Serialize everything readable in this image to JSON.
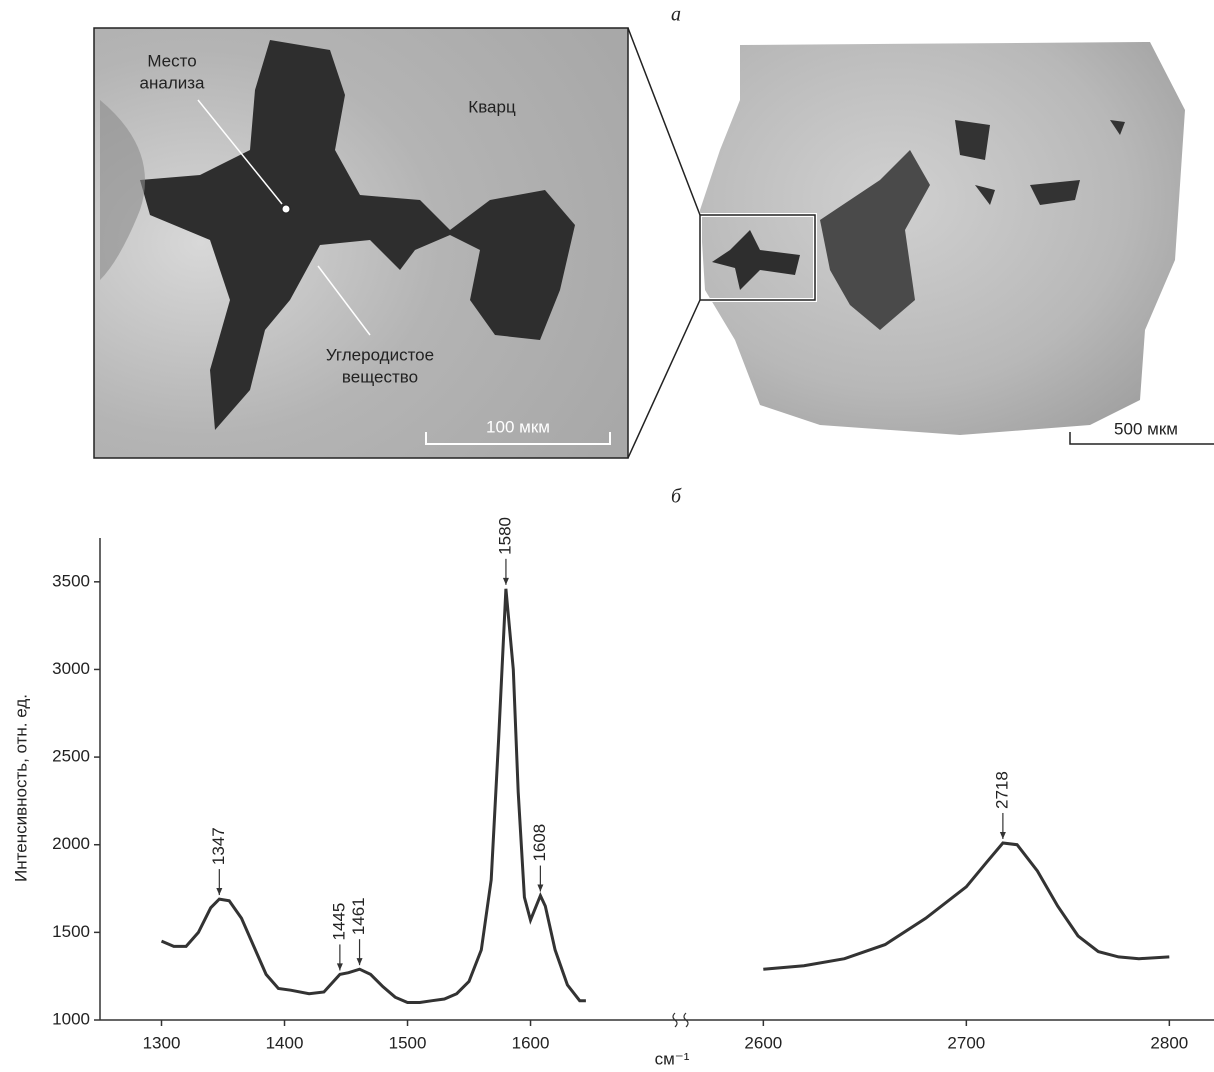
{
  "panel_a": {
    "label": "а",
    "analysis_site": [
      "Место",
      "анализа"
    ],
    "quartz": "Кварц",
    "carbon": [
      "Углеродистое",
      "вещество"
    ],
    "scale_inset": "100 мкм",
    "scale_overview": "500 мкм"
  },
  "panel_b": {
    "label": "б"
  },
  "chart_data": [
    {
      "type": "line",
      "ylabel": "Интенсивность, отн. ед.",
      "color": "#333333",
      "xlim": [
        1250,
        1715
      ],
      "xticks": [
        1300,
        1400,
        1500,
        1600
      ],
      "ylim": [
        1000,
        3750
      ],
      "yticks": [
        1000,
        1500,
        2000,
        2500,
        3000,
        3500
      ],
      "x": [
        1300,
        1310,
        1320,
        1330,
        1340,
        1347,
        1355,
        1365,
        1375,
        1385,
        1395,
        1405,
        1420,
        1432,
        1445,
        1452,
        1461,
        1470,
        1480,
        1490,
        1500,
        1510,
        1520,
        1530,
        1540,
        1550,
        1560,
        1568,
        1574,
        1580,
        1586,
        1590,
        1595,
        1600,
        1608,
        1612,
        1620,
        1630,
        1640,
        1645
      ],
      "values": [
        1450,
        1420,
        1420,
        1500,
        1640,
        1690,
        1680,
        1580,
        1420,
        1260,
        1180,
        1170,
        1150,
        1160,
        1260,
        1270,
        1290,
        1260,
        1190,
        1130,
        1100,
        1100,
        1110,
        1120,
        1150,
        1220,
        1400,
        1800,
        2600,
        3460,
        3000,
        2300,
        1700,
        1570,
        1710,
        1650,
        1400,
        1200,
        1110,
        1110
      ],
      "peaks": [
        1347,
        1445,
        1461,
        1580,
        1608
      ]
    },
    {
      "type": "line",
      "xlabel": "см⁻¹",
      "color": "#333333",
      "xlim": [
        2555,
        2822
      ],
      "xticks": [
        2600,
        2700,
        2800
      ],
      "ylim": [
        1000,
        3750
      ],
      "x": [
        2600,
        2620,
        2640,
        2660,
        2680,
        2700,
        2710,
        2718,
        2725,
        2735,
        2745,
        2755,
        2765,
        2775,
        2785,
        2800
      ],
      "values": [
        1290,
        1310,
        1350,
        1430,
        1580,
        1760,
        1900,
        2010,
        2000,
        1850,
        1650,
        1480,
        1390,
        1360,
        1350,
        1360
      ],
      "peaks": [
        2718
      ]
    }
  ]
}
